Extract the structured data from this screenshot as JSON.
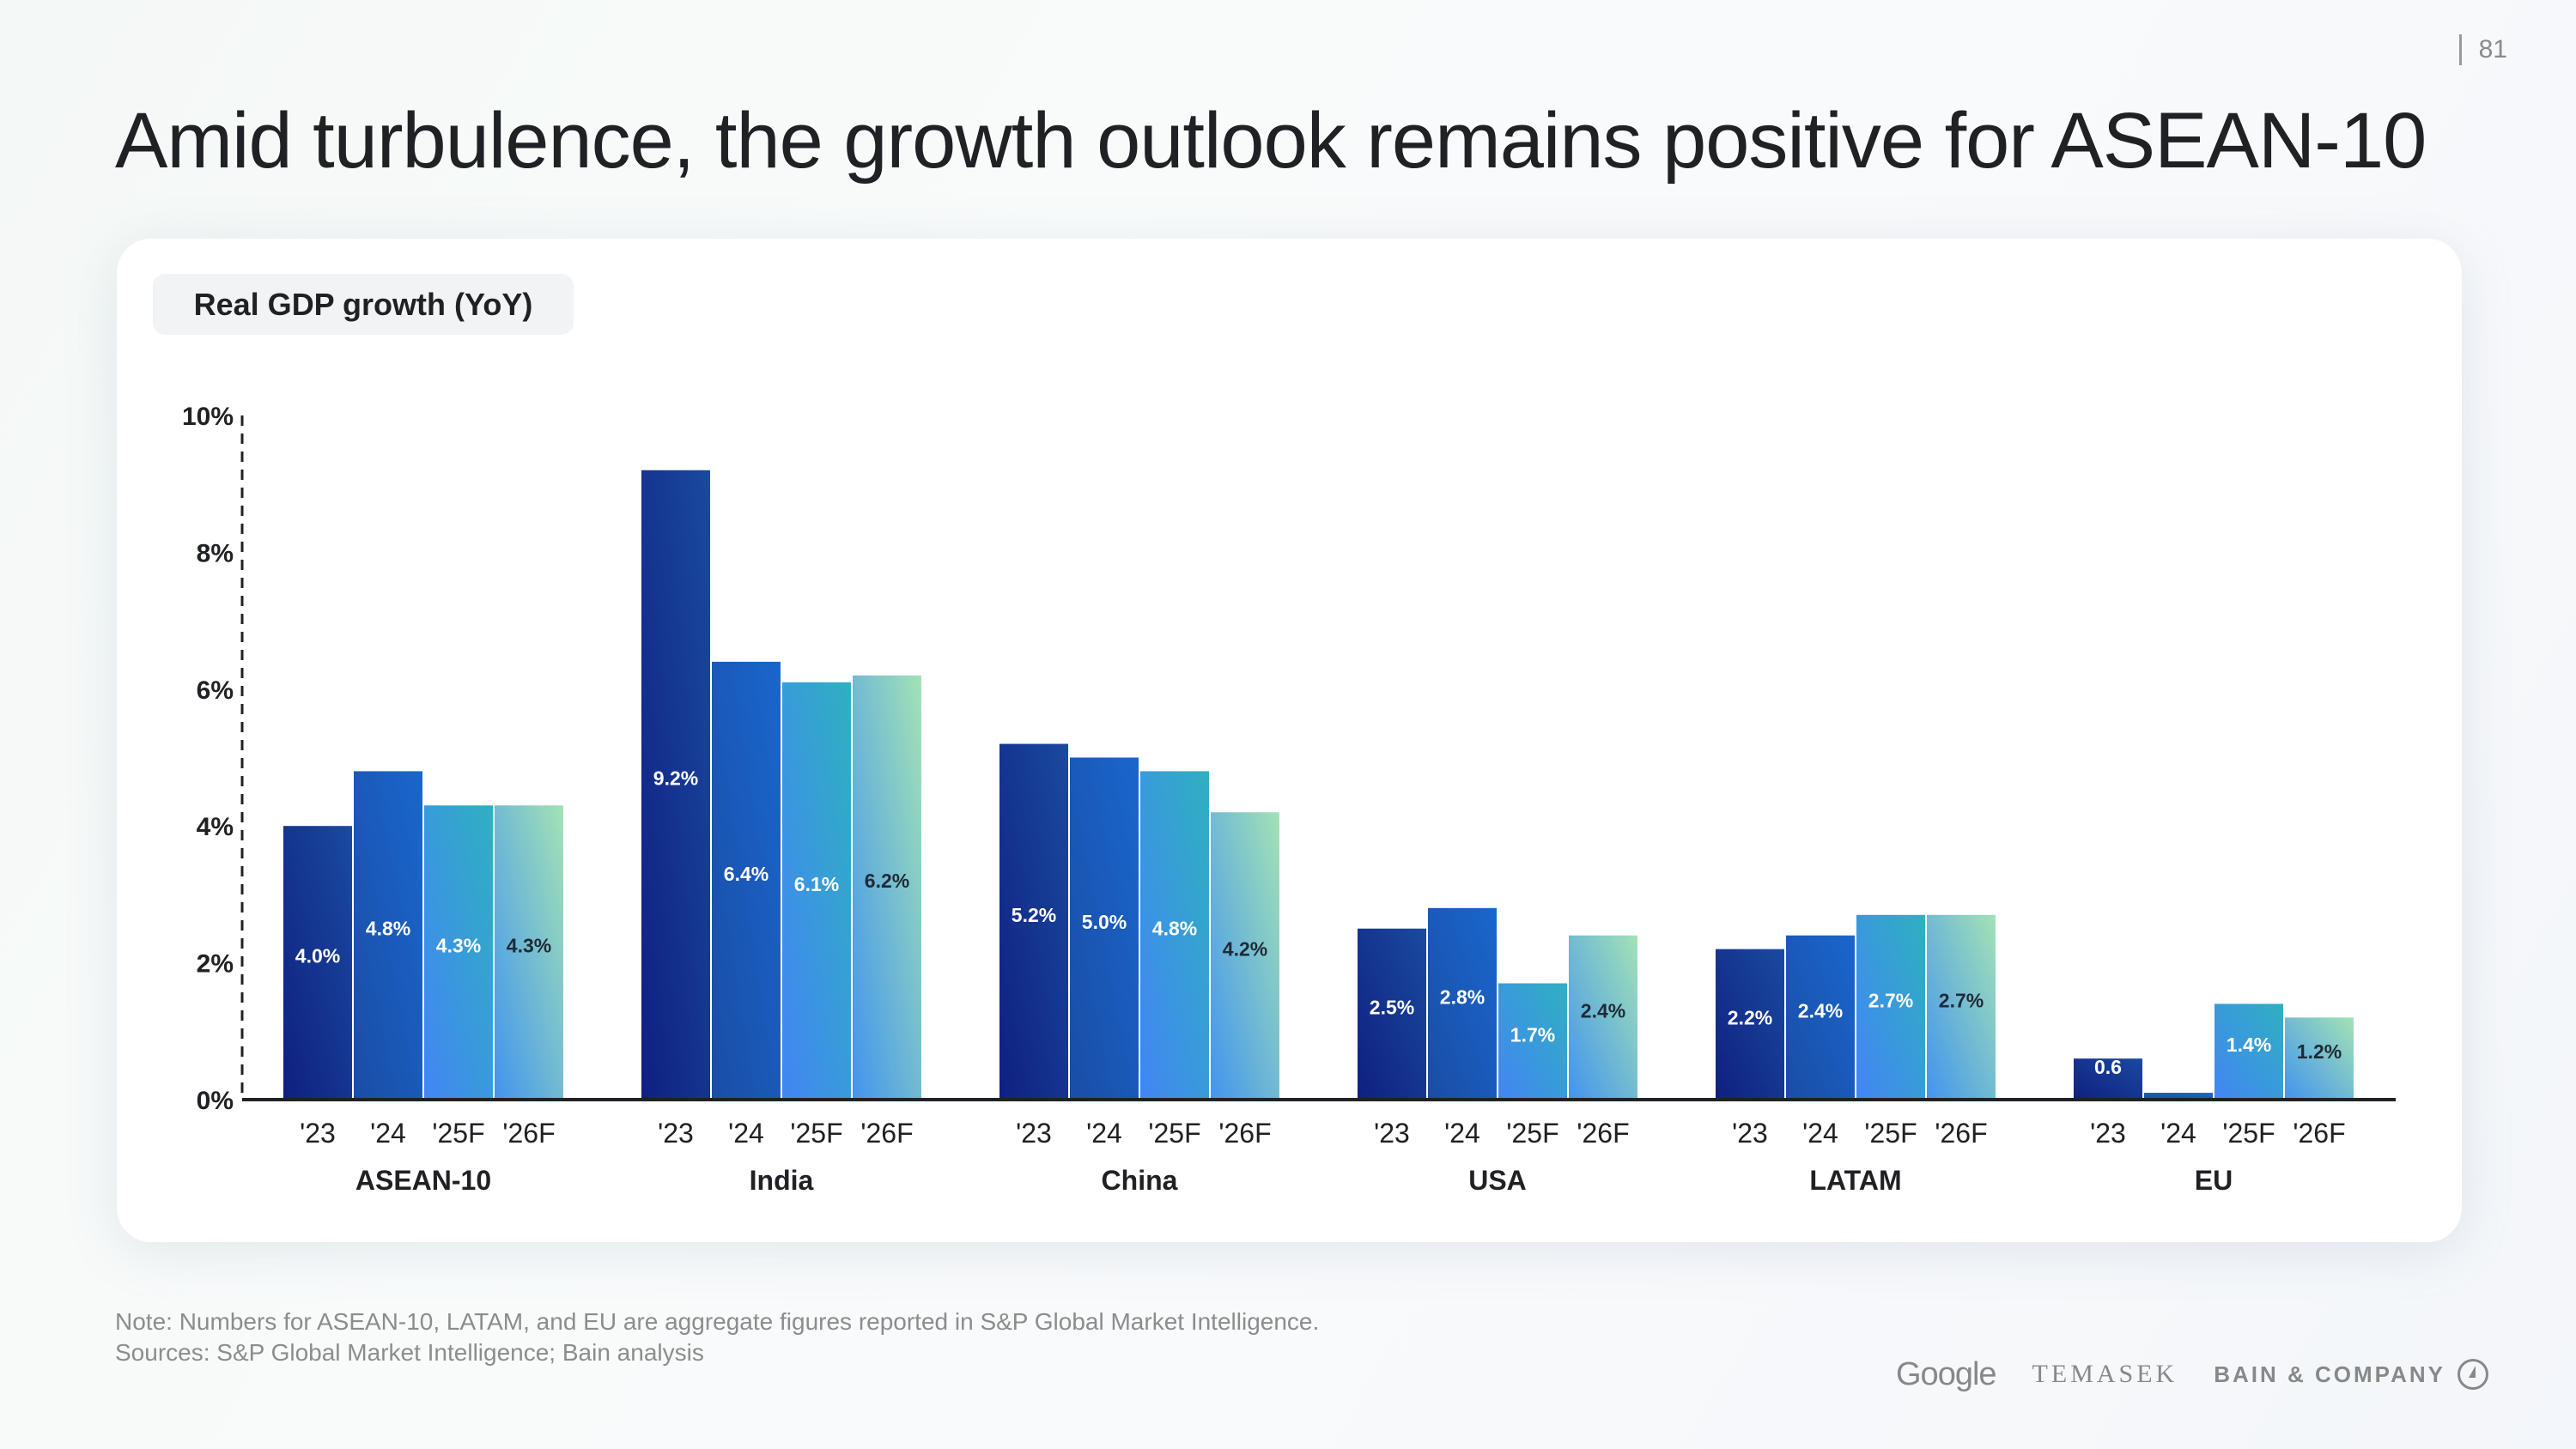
{
  "page": {
    "number": "81",
    "title": "Amid turbulence, the growth outlook remains positive for ASEAN-10"
  },
  "chart_label": "Real GDP growth (YoY)",
  "footer": {
    "note": "Note: Numbers for ASEAN-10, LATAM, and EU are aggregate figures reported in S&P Global Market Intelligence.",
    "sources": "Sources: S&P Global Market Intelligence; Bain analysis",
    "logos": [
      "Google",
      "TEMASEK",
      "BAIN & COMPANY"
    ]
  },
  "colors": {
    "y23": [
      "#1a4aa0",
      "#0f1f80"
    ],
    "y24": [
      "#1a66cc",
      "#1a4da6"
    ],
    "y25F": [
      "#2fb0c0",
      "#4285f4"
    ],
    "y26F": [
      "#a3e2b6",
      "#4294ee"
    ],
    "axis": "#202124"
  },
  "chart_data": {
    "type": "bar",
    "title": "Real GDP growth (YoY)",
    "xlabel": "",
    "ylabel": "",
    "ylim": [
      0,
      10
    ],
    "yticks": [
      0,
      2,
      4,
      6,
      8,
      10
    ],
    "ytick_labels": [
      "0%",
      "2%",
      "4%",
      "6%",
      "8%",
      "10%"
    ],
    "grid": false,
    "legend": "none",
    "categories": [
      "ASEAN-10",
      "India",
      "China",
      "USA",
      "LATAM",
      "EU"
    ],
    "periods": [
      "'23",
      "'24",
      "'25F",
      "'26F"
    ],
    "series": [
      {
        "name": "'23",
        "values": [
          4.0,
          9.2,
          5.2,
          2.5,
          2.2,
          0.6
        ],
        "labels": [
          "4.0%",
          "9.2%",
          "5.2%",
          "2.5%",
          "2.2%",
          "0.6"
        ]
      },
      {
        "name": "'24",
        "values": [
          4.8,
          6.4,
          5.0,
          2.8,
          2.4,
          0.1
        ],
        "labels": [
          "4.8%",
          "6.4%",
          "5.0%",
          "2.8%",
          "2.4%",
          "0.1%"
        ]
      },
      {
        "name": "'25F",
        "values": [
          4.3,
          6.1,
          4.8,
          1.7,
          2.7,
          1.4
        ],
        "labels": [
          "4.3%",
          "6.1%",
          "4.8%",
          "1.7%",
          "2.7%",
          "1.4%"
        ]
      },
      {
        "name": "'26F",
        "values": [
          4.3,
          6.2,
          4.2,
          2.4,
          2.7,
          1.2
        ],
        "labels": [
          "4.3%",
          "6.2%",
          "4.2%",
          "2.4%",
          "2.7%",
          "1.2%"
        ]
      }
    ]
  }
}
